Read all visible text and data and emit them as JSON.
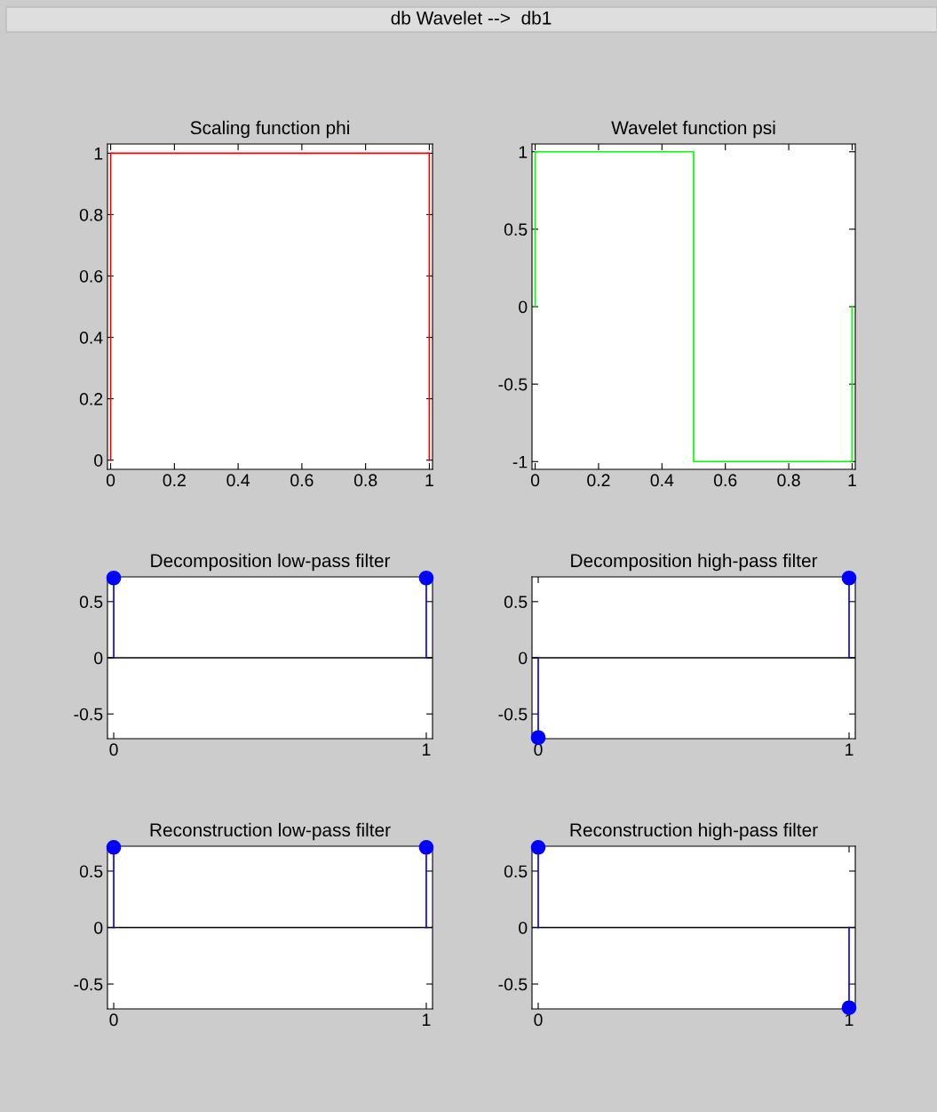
{
  "chart_data": [
    {
      "type": "line",
      "title": "Scaling function phi",
      "annotations": [
        "db Wavelet -->  db1"
      ],
      "xlim": [
        -0.01,
        1.01
      ],
      "ylim": [
        -0.03,
        1.03
      ],
      "xticks": [
        0,
        0.2,
        0.4,
        0.6,
        0.8,
        1
      ],
      "yticks": [
        0,
        0.2,
        0.4,
        0.6,
        0.8,
        1
      ],
      "grid": false,
      "marker": "none",
      "line_style": "solid",
      "series": [
        {
          "color": "#ff0000",
          "x": [
            0,
            0,
            1,
            1
          ],
          "values": [
            0,
            1,
            1,
            0
          ]
        }
      ]
    },
    {
      "type": "line",
      "title": "Wavelet function psi",
      "xlim": [
        -0.01,
        1.01
      ],
      "ylim": [
        -1.05,
        1.05
      ],
      "xticks": [
        0,
        0.2,
        0.4,
        0.6,
        0.8,
        1
      ],
      "yticks": [
        -1,
        -0.5,
        0,
        0.5,
        1
      ],
      "grid": false,
      "marker": "none",
      "line_style": "solid",
      "series": [
        {
          "color": "#00ff00",
          "x": [
            0,
            0,
            0.5,
            0.5,
            0.5,
            0.5,
            1,
            1
          ],
          "values": [
            0,
            1,
            1,
            0,
            0,
            -1,
            -1,
            0
          ]
        }
      ]
    },
    {
      "type": "lollipop",
      "title": "Decomposition low-pass filter",
      "xlim": [
        -0.02,
        1.02
      ],
      "ylim": [
        -0.72,
        0.72
      ],
      "xticks": [
        0,
        1
      ],
      "yticks": [
        -0.5,
        0,
        0.5
      ],
      "grid": false,
      "marker": "circle",
      "ref_lines": [
        {
          "axis": "y",
          "value": 0,
          "color": "#000000"
        }
      ],
      "series": [
        {
          "color": "#0000ff",
          "x": [
            0,
            1
          ],
          "values": [
            0.71,
            0.71
          ]
        }
      ]
    },
    {
      "type": "lollipop",
      "title": "Decomposition high-pass filter",
      "xlim": [
        -0.02,
        1.02
      ],
      "ylim": [
        -0.72,
        0.72
      ],
      "xticks": [
        0,
        1
      ],
      "yticks": [
        -0.5,
        0,
        0.5
      ],
      "grid": false,
      "marker": "circle",
      "ref_lines": [
        {
          "axis": "y",
          "value": 0,
          "color": "#000000"
        }
      ],
      "series": [
        {
          "color": "#0000ff",
          "x": [
            0,
            1
          ],
          "values": [
            -0.71,
            0.71
          ]
        }
      ]
    },
    {
      "type": "lollipop",
      "title": "Reconstruction low-pass filter",
      "xlim": [
        -0.02,
        1.02
      ],
      "ylim": [
        -0.72,
        0.72
      ],
      "xticks": [
        0,
        1
      ],
      "yticks": [
        -0.5,
        0,
        0.5
      ],
      "grid": false,
      "marker": "circle",
      "ref_lines": [
        {
          "axis": "y",
          "value": 0,
          "color": "#000000"
        }
      ],
      "series": [
        {
          "color": "#0000ff",
          "x": [
            0,
            1
          ],
          "values": [
            0.71,
            0.71
          ]
        }
      ]
    },
    {
      "type": "lollipop",
      "title": "Reconstruction high-pass filter",
      "xlim": [
        -0.02,
        1.02
      ],
      "ylim": [
        -0.72,
        0.72
      ],
      "xticks": [
        0,
        1
      ],
      "yticks": [
        -0.5,
        0,
        0.5
      ],
      "grid": false,
      "marker": "circle",
      "ref_lines": [
        {
          "axis": "y",
          "value": 0,
          "color": "#000000"
        }
      ],
      "series": [
        {
          "color": "#0000ff",
          "x": [
            0,
            1
          ],
          "values": [
            0.71,
            -0.71
          ]
        }
      ]
    }
  ]
}
